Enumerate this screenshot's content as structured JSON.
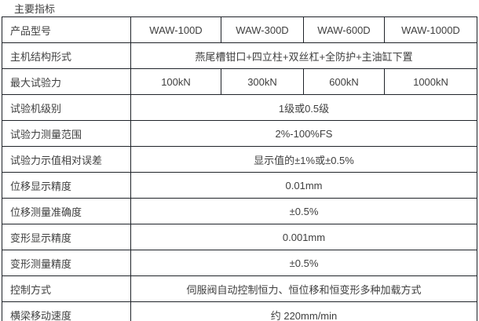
{
  "page": {
    "title": "主要指标"
  },
  "colors": {
    "border": "#1f2329",
    "text": "#3f3f3f",
    "background": "#ffffff"
  },
  "table": {
    "rows": [
      {
        "label": "产品型号",
        "values": [
          "WAW-100D",
          "WAW-300D",
          "WAW-600D",
          "WAW-1000D"
        ]
      },
      {
        "label": "主机结构形式",
        "value": "燕尾槽钳口+四立柱+双丝杠+全防护+主油缸下置"
      },
      {
        "label": "最大试验力",
        "values": [
          "100kN",
          "300kN",
          "600kN",
          "1000kN"
        ]
      },
      {
        "label": "试验机级别",
        "value": "1级或0.5级"
      },
      {
        "label": "试验力测量范围",
        "value": "2%-100%FS"
      },
      {
        "label": "试验力示值相对误差",
        "value": "显示值的±1%或±0.5%"
      },
      {
        "label": "位移显示精度",
        "value": "0.01mm"
      },
      {
        "label": "位移测量准确度",
        "value": "±0.5%"
      },
      {
        "label": "变形显示精度",
        "value": "0.001mm"
      },
      {
        "label": "变形测量精度",
        "value": "±0.5%"
      },
      {
        "label": "控制方式",
        "value": "伺服阀自动控制恒力、恒位移和恒变形多种加载方式"
      },
      {
        "label": "横梁移动速度",
        "value": "约 220mm/min"
      }
    ]
  }
}
